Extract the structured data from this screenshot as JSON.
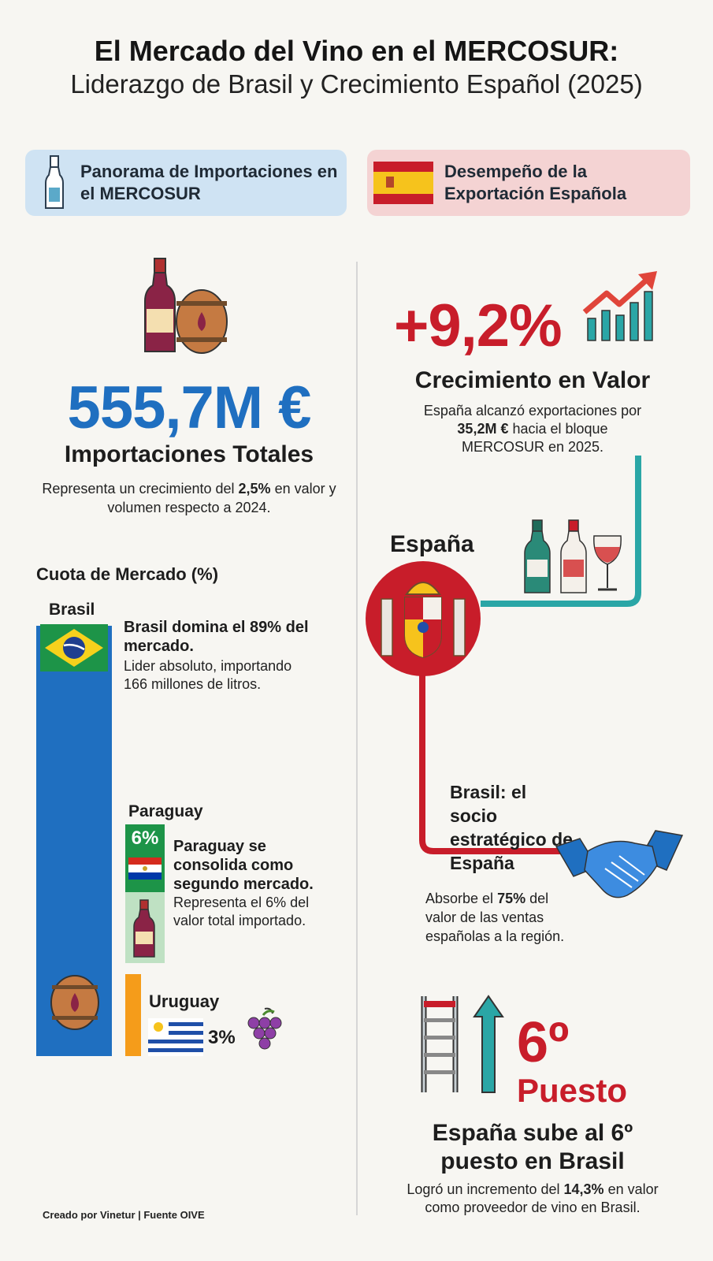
{
  "header": {
    "title": "El Mercado del Vino en el MERCOSUR:",
    "subtitle": "Liderazgo de Brasil y Crecimiento Español (2025)"
  },
  "sections": {
    "left_label": "Panorama de Importaciones en el MERCOSUR",
    "right_label": "Desempeño de la Exportación Española"
  },
  "imports": {
    "total_value": "555,7M €",
    "heading": "Importaciones Totales",
    "text_before": "Representa un crecimiento del ",
    "text_bold": "2,5%",
    "text_after": " en valor y volumen respecto a 2024."
  },
  "market_share": {
    "title": "Cuota de Mercado (%)",
    "brasil": {
      "label": "Brasil",
      "share": 89,
      "headline": "Brasil domina el 89% del mercado.",
      "detail": "Lider absoluto, importando 166 millones de litros."
    },
    "paraguay": {
      "label": "Paraguay",
      "share": 6,
      "share_label": "6%",
      "headline": "Paraguay se consolida como segundo mercado.",
      "detail": "Representa el 6% del valor total importado."
    },
    "uruguay": {
      "label": "Uruguay",
      "share": 3,
      "share_label": "3%"
    }
  },
  "exports": {
    "growth": "+9,2%",
    "heading": "Crecimiento en Valor",
    "text_before": "España alcanzó exportaciones por ",
    "text_bold": "35,2M €",
    "text_after": " hacia el bloque MERCOSUR en 2025.",
    "country": "España",
    "partner_title": "Brasil: el socio estratégico de España",
    "absorbe_before": "Absorbe el ",
    "absorbe_bold": "75%",
    "absorbe_after": " del valor de las ventas españolas a la región.",
    "rank": "6º",
    "rank_word": "Puesto",
    "rank_heading": "España sube al 6º puesto en Brasil",
    "rank_before": "Logró un incremento del ",
    "rank_bold": "14,3%",
    "rank_after": " en valor como proveedor de vino en Brasil."
  },
  "footer": "Creado por Vinetur | Fuente OIVE",
  "colors": {
    "blue": "#1f6fc0",
    "red": "#c81d2a",
    "teal": "#2aa6a6",
    "green": "#1d9448",
    "orange": "#f59c1a"
  },
  "icons": [
    "bottle-icon",
    "spain-flag-icon",
    "wine-bottle-barrel-icon",
    "growth-chart-icon",
    "bottles-glass-icon",
    "spain-coat-of-arms-icon",
    "handshake-icon",
    "brazil-flag-icon",
    "paraguay-flag-icon",
    "uruguay-flag-icon",
    "barrel-icon",
    "grapes-icon",
    "ladder-icon",
    "arrow-up-icon"
  ]
}
